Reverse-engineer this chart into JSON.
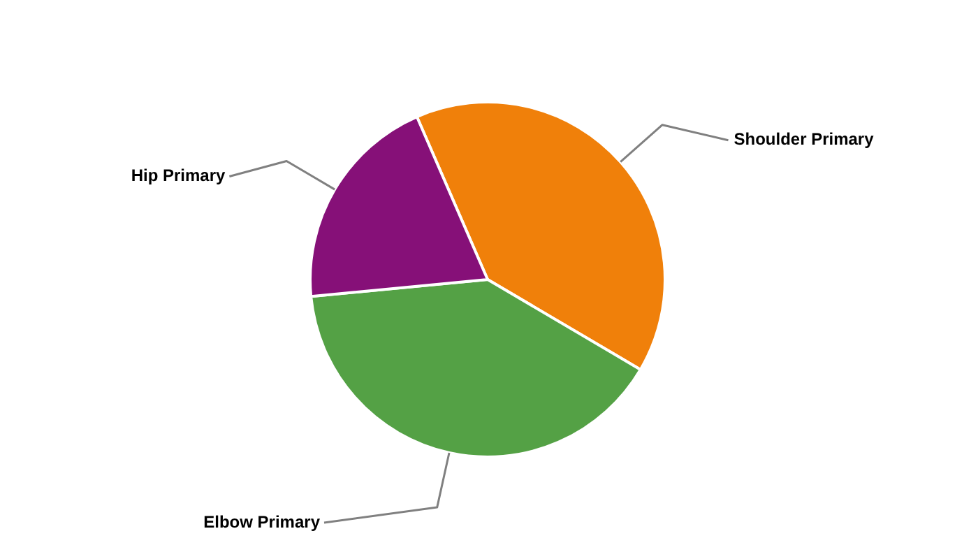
{
  "chart_data": {
    "type": "pie",
    "categories": [
      "Shoulder Primary",
      "Elbow Primary",
      "Hip Primary"
    ],
    "values": [
      40,
      40,
      20
    ],
    "colors": [
      "#f0800a",
      "#54a145",
      "#861078"
    ]
  }
}
